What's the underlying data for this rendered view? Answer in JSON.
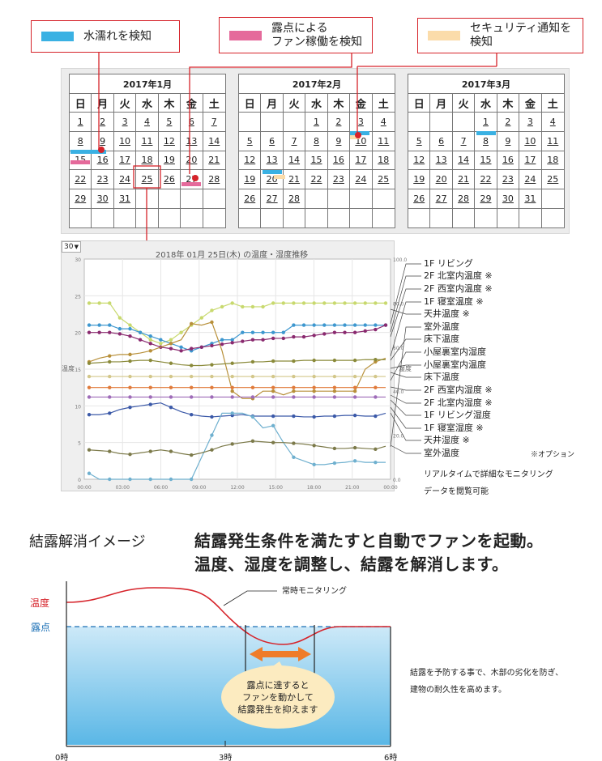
{
  "legend": [
    {
      "label": "水濡れを検知",
      "color": "#3ab1e3"
    },
    {
      "label": "露点による\nファン稼働を検知",
      "color": "#e56a9b"
    },
    {
      "label": "セキュリティ通知を\n検知",
      "color": "#fbdcaa"
    }
  ],
  "weekdays": [
    "日",
    "月",
    "火",
    "水",
    "木",
    "金",
    "土"
  ],
  "calendars": [
    {
      "title": "2017年1月",
      "start_weekday": 0,
      "days": 31
    },
    {
      "title": "2017年2月",
      "start_weekday": 3,
      "days": 28
    },
    {
      "title": "2017年3月",
      "start_weekday": 3,
      "days": 31
    }
  ],
  "chart": {
    "zoom_value": "30",
    "title": "2018年 01月 25日(木) の温度・湿度推移",
    "ylabel_left": "温度",
    "ylabel_right": "湿度",
    "left_ticks": [
      "30",
      "25",
      "20",
      "15",
      "10",
      "5",
      "0"
    ],
    "right_ticks": [
      "100.0",
      "80.0",
      "60.0",
      "40.0",
      "20.0",
      "0.0"
    ],
    "x_ticks": [
      "00:00",
      "03:00",
      "06:00",
      "09:00",
      "12:00",
      "15:00",
      "18:00",
      "21:00",
      "00:00"
    ],
    "series_labels": [
      "1F リビング",
      "2F 北室内温度 ※",
      "2F 西室内温度 ※",
      "1F 寝室温度 ※",
      "天井温度 ※",
      "室外温度",
      "床下温度",
      "小屋裏室内湿度",
      "小屋裏室内温度",
      "床下温度",
      "2F 西室内湿度 ※",
      "2F 北室内湿度 ※",
      "1F リビング湿度",
      "1F 寝室湿度 ※",
      "天井湿度 ※",
      "室外温度"
    ],
    "option_note": "※オプション",
    "realtime_note_1": "リアルタイムで詳細なモニタリング",
    "realtime_note_2": "データを閲覧可能"
  },
  "bottom": {
    "section_title": "結露解消イメージ",
    "headline_1": "結露発生条件を満たすと自動でファンを起動。",
    "headline_2": "温度、湿度を調整し、結露を解消します。",
    "temp_label": "温度",
    "dew_label": "露点",
    "monitor_label": "常時モニタリング",
    "bubble_text_1": "露点に達すると",
    "bubble_text_2": "ファンを動かして",
    "bubble_text_3": "結露発生を抑えます",
    "side_note_1": "結露を予防する事で、木部の劣化を防ぎ、",
    "side_note_2": "建物の耐久性を高めます。",
    "x_labels": [
      "0時",
      "3時",
      "6時"
    ],
    "temp_color": "#d6232a",
    "dew_color": "#1a6fb5"
  }
}
